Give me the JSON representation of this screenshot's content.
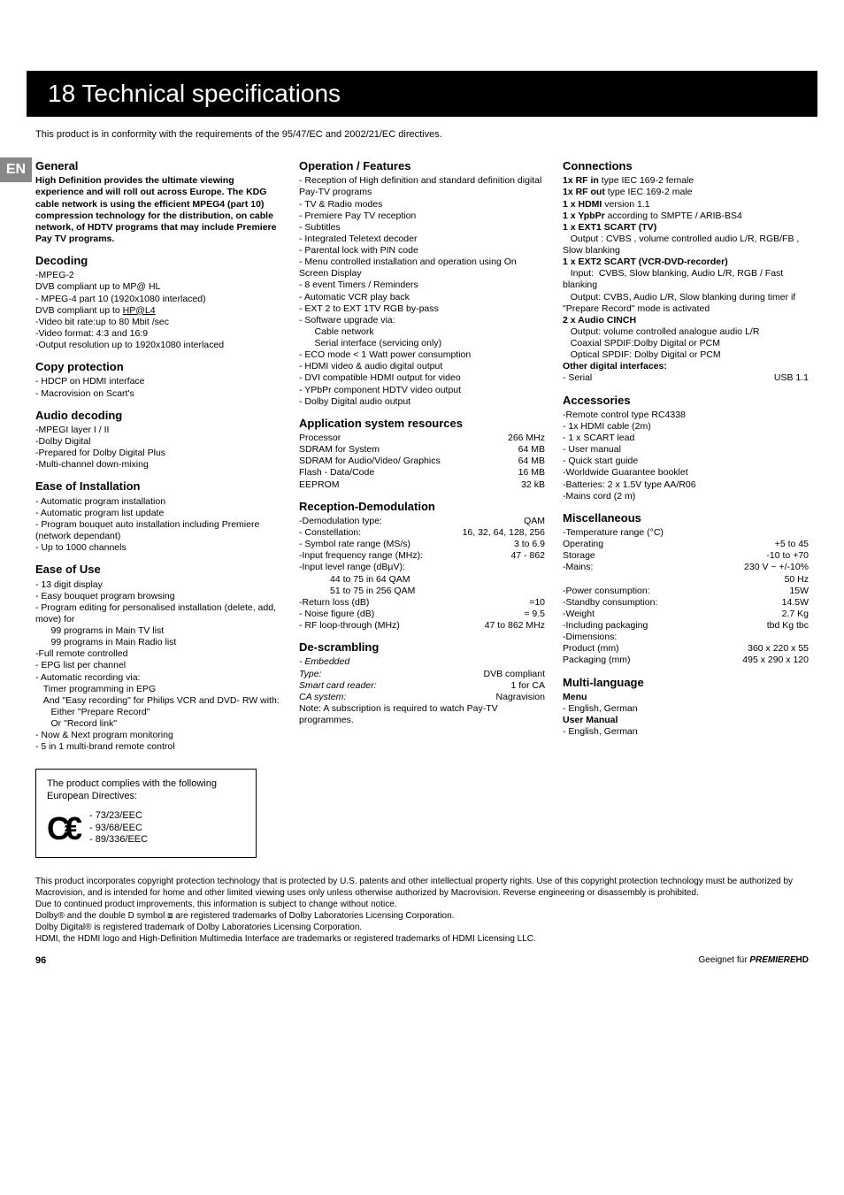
{
  "title_bar": "18 Technical specifications",
  "conformity": "This product is in conformity with the requirements of the 95/47/EC and 2002/21/EC directives.",
  "lang_tab": "EN",
  "col1": {
    "general_title": "General",
    "general_body": "High Definition provides the ultimate viewing experience and will roll out across Europe. The KDG cable network is using the efficient MPEG4 (part 10) compression technology for the distribution, on cable network, of HDTV programs that may include Premiere Pay TV programs.",
    "decoding_title": "Decoding",
    "decoding_lines": [
      "-MPEG-2",
      "DVB compliant up to MP@ HL",
      "- MPEG-4 part 10 (1920x1080 interlaced)",
      "DVB compliant up to HP@L4",
      "-Video bit rate:up to 80 Mbit /sec",
      "-Video format: 4:3 and 16:9",
      "-Output resolution up to 1920x1080 interlaced"
    ],
    "copy_title": "Copy protection",
    "copy_lines": [
      "- HDCP on HDMI interface",
      "- Macrovision on Scart's"
    ],
    "audio_title": "Audio decoding",
    "audio_lines": [
      "-MPEGI layer I / II",
      "-Dolby Digital",
      "-Prepared for Dolby Digital Plus",
      "-Multi-channel down-mixing"
    ],
    "easeinst_title": "Ease of Installation",
    "easeinst_lines": [
      "- Automatic program installation",
      "- Automatic program list update",
      "- Program bouquet auto installation including Premiere (network dependant)",
      "- Up to 1000 channels"
    ],
    "easeuse_title": "Ease of Use",
    "easeuse_lines": [
      "- 13 digit display",
      "- Easy bouquet program browsing",
      "- Program editing for personalised installation (delete, add, move) for",
      "      99 programs in Main TV list",
      "      99 programs in Main Radio list",
      "-Full remote controlled",
      "- EPG list per channel",
      "- Automatic recording via:",
      "   Timer programming in EPG",
      "   And \"Easy recording\" for Philips VCR and DVD- RW with:",
      "      Either \"Prepare Record\"",
      "      Or \"Record link\"",
      "- Now & Next program monitoring",
      "- 5 in 1 multi-brand remote control"
    ],
    "directive_intro": "The product complies with the following European Directives:",
    "directive_list": [
      "- 73/23/EEC",
      "- 93/68/EEC",
      "- 89/336/EEC"
    ]
  },
  "col2": {
    "op_title": "Operation / Features",
    "op_lines": [
      "- Reception of High definition and standard definition digital Pay-TV programs",
      "- TV & Radio modes",
      "- Premiere Pay TV reception",
      "- Subtitles",
      "- Integrated Teletext decoder",
      "- Parental lock with PIN code",
      "- Menu controlled installation and operation using On Screen Display",
      "- 8 event Timers / Reminders",
      "- Automatic VCR play back",
      "- EXT 2 to EXT 1TV RGB by-pass",
      "- Software upgrade via:",
      "      Cable network",
      "      Serial interface (servicing only)",
      "- ECO mode < 1 Watt power consumption",
      "- HDMI video & audio digital output",
      "- DVI compatible HDMI output for video",
      "- YPbPr component HDTV video output",
      "- Dolby Digital audio output"
    ],
    "appsys_title": "Application system resources",
    "appsys_rows": [
      [
        "Processor",
        "266 MHz"
      ],
      [
        "SDRAM for System",
        "64 MB"
      ],
      [
        "SDRAM for Audio/Video/ Graphics",
        "64 MB"
      ],
      [
        "Flash - Data/Code",
        "16 MB"
      ],
      [
        "EEPROM",
        "32 kB"
      ]
    ],
    "recdemod_title": "Reception-Demodulation",
    "recdemod_lines": [
      [
        "-Demodulation type:",
        "QAM"
      ],
      [
        "- Constellation:",
        "16, 32, 64, 128, 256"
      ],
      [
        "- Symbol rate range (MS/s)",
        "3 to 6.9"
      ],
      [
        "-Input frequency range (MHz):",
        "47 - 862"
      ]
    ],
    "recdemod_extra": [
      "-Input level range (dBµV):",
      "            44 to 75 in 64 QAM",
      "            51 to 75 in 256 QAM"
    ],
    "recdemod_lines2": [
      [
        "-Return loss (dB)",
        "=10"
      ],
      [
        "- Noise figure (dB)",
        "= 9.5"
      ],
      [
        "- RF loop-through (MHz)",
        "47 to 862 MHz"
      ]
    ],
    "descr_title": "De-scrambling",
    "descr_lines": [
      [
        "- Embedded",
        ""
      ],
      [
        "Type:",
        "DVB compliant"
      ],
      [
        "Smart card reader:",
        "1 for CA"
      ],
      [
        "CA system:",
        "Nagravision"
      ]
    ],
    "descr_note": "Note: A subscription is required to watch Pay-TV programmes."
  },
  "col3": {
    "conn_title": "Connections",
    "conn_lines": [
      {
        "b": "1x RF in",
        "r": " type IEC 169-2 female"
      },
      {
        "b": "1x RF out",
        "r": " type IEC 169-2 male"
      },
      {
        "b": "1 x HDMI",
        "r": " version 1.1"
      },
      {
        "b": "1 x YpbPr",
        "r": " according to SMPTE / ARIB-BS4"
      },
      {
        "b": "1 x EXT1 SCART (TV)",
        "r": ""
      }
    ],
    "ext1_out": "   Output : CVBS , volume controlled audio L/R, RGB/FB , Slow blanking",
    "ext2_title": "1 x EXT2 SCART (VCR-DVD-recorder)",
    "ext2_in": "   Input:  CVBS, Slow blanking, Audio L/R, RGB / Fast blanking",
    "ext2_out": "   Output: CVBS, Audio L/R, Slow blanking during timer if \"Prepare Record\" mode is activated",
    "cinch_title": "2 x Audio CINCH",
    "cinch_out": "   Output: volume controlled analogue audio L/R",
    "cinch_lines": [
      "   Coaxial SPDIF:Dolby Digital or PCM",
      "   Optical SPDIF: Dolby Digital or PCM"
    ],
    "other_title": "Other digital interfaces:",
    "other_row": [
      "  - Serial",
      "USB 1.1"
    ],
    "acc_title": "Accessories",
    "acc_lines": [
      "-Remote control type RC4338",
      "- 1x HDMI cable (2m)",
      "- 1 x SCART lead",
      "- User manual",
      "- Quick start guide",
      "-Worldwide Guarantee booklet",
      "-Batteries: 2 x 1.5V type AA/R06",
      "-Mains cord (2 m)"
    ],
    "misc_title": "Miscellaneous",
    "misc_temp_label": "-Temperature range (°C)",
    "misc_rows": [
      [
        "   Operating",
        "+5 to 45"
      ],
      [
        "   Storage",
        "-10 to +70"
      ],
      [
        "-Mains:",
        "230 V ~ +/-10%"
      ],
      [
        "",
        "50 Hz"
      ],
      [
        "-Power consumption:",
        "15W"
      ],
      [
        "-Standby consumption:",
        "14.5W"
      ],
      [
        "-Weight",
        "2.7 Kg"
      ],
      [
        "-Including packaging",
        "tbd Kg tbc"
      ],
      [
        "-Dimensions:",
        ""
      ],
      [
        "Product (mm)",
        "360 x 220 x 55"
      ],
      [
        "Packaging (mm)",
        "495 x 290 x 120"
      ]
    ],
    "multi_title": "Multi-language",
    "multi_lines": [
      {
        "b": "Menu",
        "r": ""
      },
      {
        "b": "",
        "r": "- English, German"
      },
      {
        "b": "User Manual",
        "r": ""
      },
      {
        "b": "",
        "r": "- English, German"
      }
    ]
  },
  "legal": [
    "This product incorporates copyright protection technology that is protected by U.S. patents and other intellectual property rights. Use of this copyright protection technology must be authorized by Macrovision, and is intended for home and other limited viewing uses only unless otherwise authorized by Macrovision. Reverse engineering or disassembly is prohibited.",
    "Due to continued product improvements, this information is subject to change without notice.",
    "Dolby® and the double D symbol ⧈ are registered trademarks of Dolby Laboratories Licensing Corporation.",
    "Dolby Digital® is registered trademark of Dolby Laboratories Licensing Corporation.",
    "HDMI, the HDMI logo and High-Definition Multimedia Interface are trademarks or registered trademarks of HDMI Licensing LLC."
  ],
  "footer": {
    "page": "96",
    "right_prefix": "Geeignet für ",
    "right_brand": "PREMIERE",
    "right_suffix": "HD"
  }
}
